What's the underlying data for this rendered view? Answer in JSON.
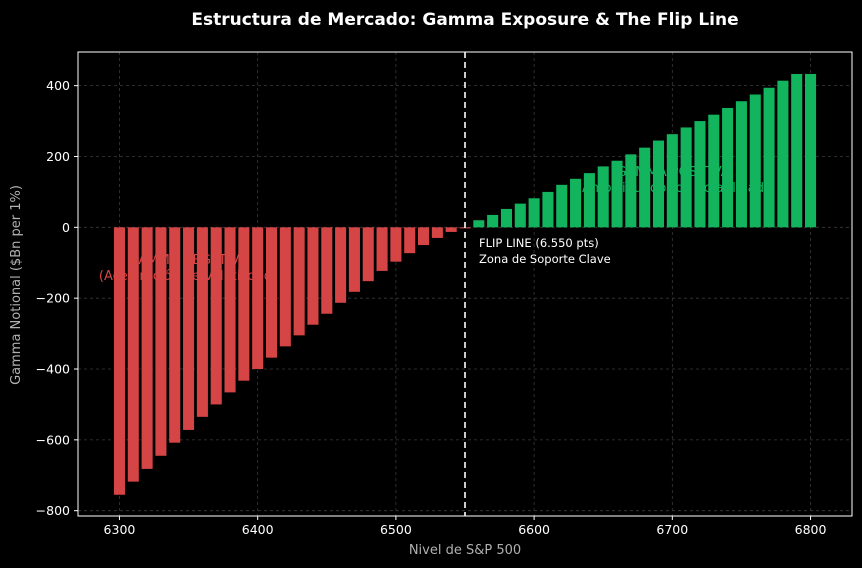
{
  "chart_data": {
    "type": "bar",
    "title": "Estructura de Mercado: Gamma Exposure & The Flip Line",
    "xlabel": "Nivel de S&P 500",
    "ylabel": "Gamma Notional ($Bn per 1%)",
    "xlim": [
      6270,
      6830
    ],
    "ylim": [
      -815,
      495
    ],
    "xticks": [
      6300,
      6400,
      6500,
      6600,
      6700,
      6800
    ],
    "yticks": [
      -800,
      -600,
      -400,
      -200,
      0,
      200,
      400
    ],
    "grid": true,
    "x": [
      6300,
      6310,
      6320,
      6330,
      6340,
      6350,
      6360,
      6370,
      6380,
      6390,
      6400,
      6410,
      6420,
      6430,
      6440,
      6450,
      6460,
      6470,
      6480,
      6490,
      6500,
      6510,
      6520,
      6530,
      6540,
      6550,
      6560,
      6570,
      6580,
      6590,
      6600,
      6610,
      6620,
      6630,
      6640,
      6650,
      6660,
      6670,
      6680,
      6690,
      6700,
      6710,
      6720,
      6730,
      6740,
      6750,
      6760,
      6770,
      6780,
      6790,
      6800
    ],
    "values": [
      -755,
      -718,
      -682,
      -645,
      -608,
      -572,
      -535,
      -500,
      -466,
      -433,
      -400,
      -368,
      -336,
      -305,
      -275,
      -244,
      -213,
      -182,
      -152,
      -123,
      -97,
      -73,
      -50,
      -30,
      -13,
      -3,
      20,
      35,
      52,
      67,
      82,
      100,
      120,
      137,
      153,
      172,
      188,
      206,
      225,
      245,
      263,
      282,
      300,
      318,
      337,
      356,
      375,
      394,
      414,
      433,
      433
    ],
    "colors": {
      "negative": "#d64545",
      "positive": "#12b55e",
      "flip_line": "#ffffff",
      "background": "#000000"
    },
    "flip_line": {
      "x": 6550
    },
    "annotations": {
      "negative_line1": "GAMMA NEGATIVA",
      "negative_line2": "(Aceleración de Volatilidad)",
      "positive_line1": "GAMMA POSITIVA",
      "positive_line2": "(Amortiguador de Volatilidad)",
      "flip_line1": "FLIP LINE (6.550 pts)",
      "flip_line2": "Zona de Soporte Clave"
    }
  }
}
